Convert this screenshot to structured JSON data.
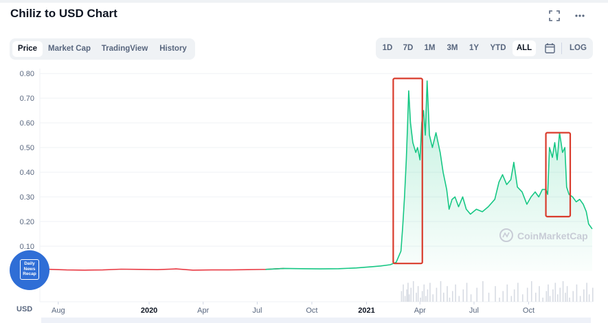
{
  "title": "Chiliz to USD Chart",
  "header_icons": [
    "fullscreen-icon",
    "more-icon"
  ],
  "tabs": [
    "Price",
    "Market Cap",
    "TradingView",
    "History"
  ],
  "active_tab": "Price",
  "ranges": [
    "1D",
    "7D",
    "1M",
    "3M",
    "1Y",
    "YTD",
    "ALL"
  ],
  "active_range": "ALL",
  "calendar_icon": "calendar-icon",
  "log_label": "LOG",
  "currency": "USD",
  "watermark": "CoinMarketCap",
  "badge_text": [
    "Daily",
    "News",
    "Recap"
  ],
  "colors": {
    "up": "#16c784",
    "down": "#ea3943",
    "annotation": "#d93a2b",
    "badge": "#2f6ed6"
  },
  "chart_data": {
    "type": "line",
    "title": "Chiliz to USD Chart",
    "x_tick_labels": [
      "Aug",
      "2020",
      "Apr",
      "Jul",
      "Oct",
      "2021",
      "Apr",
      "Jul",
      "Oct"
    ],
    "y_tick_labels": [
      "0.10",
      "0.20",
      "0.30",
      "0.40",
      "0.50",
      "0.60",
      "0.70",
      "0.80"
    ],
    "ylim": [
      0,
      0.82
    ],
    "grid": true,
    "series": [
      {
        "points": [
          [
            "2019-07-01",
            0.008
          ],
          [
            "2019-07-20",
            0.006
          ],
          [
            "2019-08-15",
            0.004
          ],
          [
            "2019-09-15",
            0.003
          ],
          [
            "2019-10-15",
            0.004
          ],
          [
            "2019-11-15",
            0.007
          ],
          [
            "2019-12-15",
            0.006
          ],
          [
            "2020-01-15",
            0.005
          ],
          [
            "2020-02-15",
            0.008
          ],
          [
            "2020-03-15",
            0.003
          ],
          [
            "2020-04-15",
            0.004
          ],
          [
            "2020-05-15",
            0.004
          ],
          [
            "2020-06-15",
            0.005
          ],
          [
            "2020-07-15",
            0.006
          ],
          [
            "2020-08-15",
            0.01
          ],
          [
            "2020-09-15",
            0.009
          ],
          [
            "2020-10-15",
            0.008
          ],
          [
            "2020-11-15",
            0.009
          ],
          [
            "2020-12-15",
            0.012
          ],
          [
            "2021-01-10",
            0.017
          ],
          [
            "2021-01-25",
            0.02
          ],
          [
            "2021-02-10",
            0.025
          ],
          [
            "2021-02-20",
            0.035
          ],
          [
            "2021-02-28",
            0.08
          ],
          [
            "2021-03-03",
            0.18
          ],
          [
            "2021-03-06",
            0.3
          ],
          [
            "2021-03-09",
            0.45
          ],
          [
            "2021-03-11",
            0.58
          ],
          [
            "2021-03-13",
            0.73
          ],
          [
            "2021-03-16",
            0.6
          ],
          [
            "2021-03-20",
            0.52
          ],
          [
            "2021-03-25",
            0.48
          ],
          [
            "2021-03-28",
            0.5
          ],
          [
            "2021-04-01",
            0.45
          ],
          [
            "2021-04-04",
            0.6
          ],
          [
            "2021-04-07",
            0.65
          ],
          [
            "2021-04-10",
            0.55
          ],
          [
            "2021-04-13",
            0.77
          ],
          [
            "2021-04-17",
            0.55
          ],
          [
            "2021-04-22",
            0.5
          ],
          [
            "2021-04-28",
            0.56
          ],
          [
            "2021-05-05",
            0.48
          ],
          [
            "2021-05-10",
            0.4
          ],
          [
            "2021-05-16",
            0.33
          ],
          [
            "2021-05-20",
            0.25
          ],
          [
            "2021-05-25",
            0.29
          ],
          [
            "2021-05-30",
            0.3
          ],
          [
            "2021-06-05",
            0.26
          ],
          [
            "2021-06-12",
            0.3
          ],
          [
            "2021-06-18",
            0.25
          ],
          [
            "2021-06-25",
            0.23
          ],
          [
            "2021-07-05",
            0.25
          ],
          [
            "2021-07-15",
            0.24
          ],
          [
            "2021-07-25",
            0.26
          ],
          [
            "2021-08-05",
            0.29
          ],
          [
            "2021-08-12",
            0.36
          ],
          [
            "2021-08-18",
            0.39
          ],
          [
            "2021-08-25",
            0.35
          ],
          [
            "2021-09-01",
            0.37
          ],
          [
            "2021-09-06",
            0.44
          ],
          [
            "2021-09-12",
            0.34
          ],
          [
            "2021-09-20",
            0.32
          ],
          [
            "2021-09-28",
            0.27
          ],
          [
            "2021-10-05",
            0.3
          ],
          [
            "2021-10-12",
            0.32
          ],
          [
            "2021-10-18",
            0.3
          ],
          [
            "2021-10-24",
            0.33
          ],
          [
            "2021-10-30",
            0.33
          ],
          [
            "2021-11-02",
            0.31
          ],
          [
            "2021-11-05",
            0.5
          ],
          [
            "2021-11-10",
            0.46
          ],
          [
            "2021-11-14",
            0.52
          ],
          [
            "2021-11-18",
            0.45
          ],
          [
            "2021-11-22",
            0.56
          ],
          [
            "2021-11-27",
            0.48
          ],
          [
            "2021-12-01",
            0.5
          ],
          [
            "2021-12-04",
            0.34
          ],
          [
            "2021-12-08",
            0.31
          ],
          [
            "2021-12-14",
            0.3
          ],
          [
            "2021-12-20",
            0.28
          ],
          [
            "2021-12-26",
            0.29
          ],
          [
            "2022-01-01",
            0.27
          ],
          [
            "2022-01-06",
            0.24
          ],
          [
            "2022-01-10",
            0.19
          ],
          [
            "2022-01-16",
            0.17
          ]
        ]
      }
    ],
    "annotations": [
      {
        "type": "box",
        "x": [
          "2021-02-15",
          "2021-04-05"
        ],
        "y": [
          0.03,
          0.78
        ]
      },
      {
        "type": "box",
        "x": [
          "2021-10-30",
          "2021-12-10"
        ],
        "y": [
          0.22,
          0.56
        ]
      }
    ]
  }
}
